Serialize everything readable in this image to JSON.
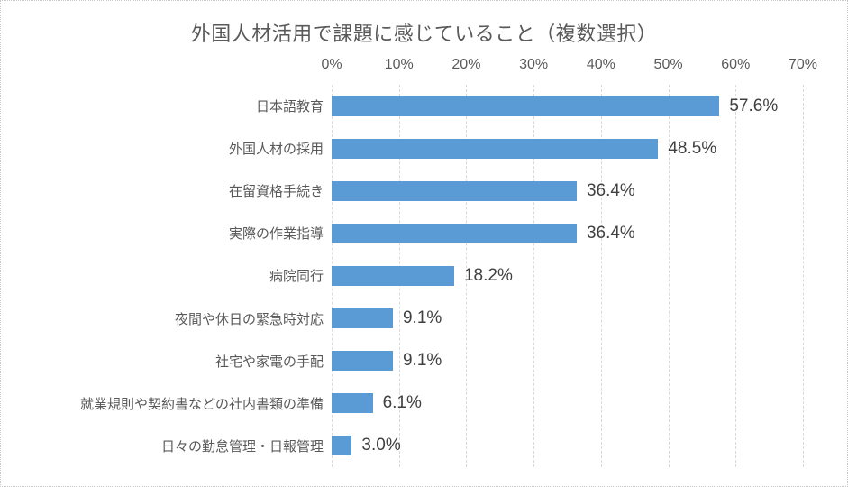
{
  "chart_data": {
    "type": "bar",
    "orientation": "horizontal",
    "title": "外国人材活用で課題に感じていること（複数選択）",
    "xlabel": "",
    "ylabel": "",
    "xlim": [
      0,
      70
    ],
    "x_ticks": [
      "0%",
      "10%",
      "20%",
      "30%",
      "40%",
      "50%",
      "60%",
      "70%"
    ],
    "grid": true,
    "gridline_style": "dashed",
    "bar_color": "#5B9BD5",
    "title_color": "#595959",
    "axis_text_color": "#595959",
    "data_label_color": "#404040",
    "categories": [
      "日本語教育",
      "外国人材の採用",
      "在留資格手続き",
      "実際の作業指導",
      "病院同行",
      "夜間や休日の緊急時対応",
      "社宅や家電の手配",
      "就業規則や契約書などの社内書類の準備",
      "日々の勤怠管理・日報管理"
    ],
    "values": [
      57.6,
      48.5,
      36.4,
      36.4,
      18.2,
      9.1,
      9.1,
      6.1,
      3.0
    ],
    "rows": [
      {
        "label": "日本語教育",
        "value": 57.6,
        "value_label": "57.6%"
      },
      {
        "label": "外国人材の採用",
        "value": 48.5,
        "value_label": "48.5%"
      },
      {
        "label": "在留資格手続き",
        "value": 36.4,
        "value_label": "36.4%"
      },
      {
        "label": "実際の作業指導",
        "value": 36.4,
        "value_label": "36.4%"
      },
      {
        "label": "病院同行",
        "value": 18.2,
        "value_label": "18.2%"
      },
      {
        "label": "夜間や休日の緊急時対応",
        "value": 9.1,
        "value_label": "9.1%"
      },
      {
        "label": "社宅や家電の手配",
        "value": 9.1,
        "value_label": "9.1%"
      },
      {
        "label": "就業規則や契約書などの社内書類の準備",
        "value": 6.1,
        "value_label": "6.1%"
      },
      {
        "label": "日々の勤怠管理・日報管理",
        "value": 3.0,
        "value_label": "3.0%"
      }
    ]
  }
}
